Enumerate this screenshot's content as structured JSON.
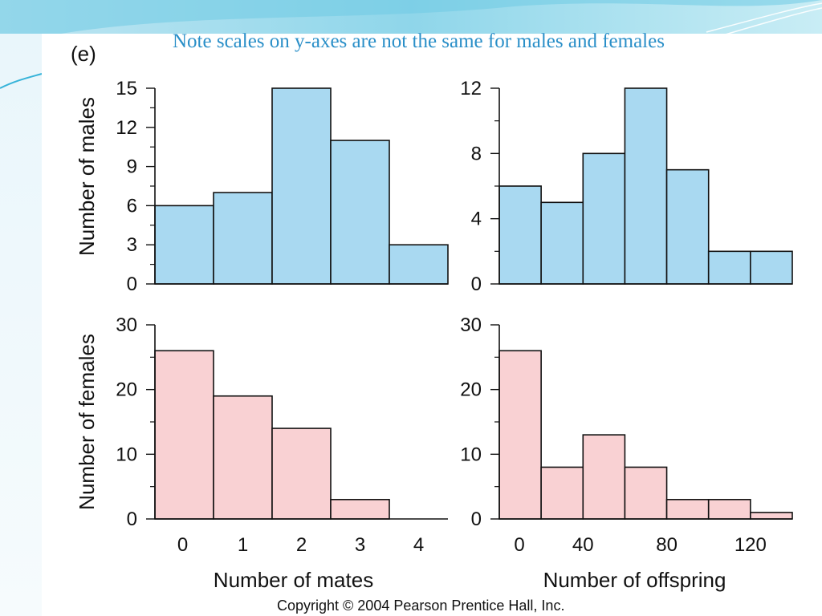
{
  "slide": {
    "title": "Note scales on y-axes are not the same for males and females",
    "panel_label": "(e)",
    "copyright": "Copyright © 2004 Pearson Prentice Hall, Inc.",
    "colors": {
      "male": "#a9d9f1",
      "female": "#f9d1d3",
      "title": "#2a8fc8",
      "accent": "#36b3d9"
    }
  },
  "chart_data": [
    {
      "id": "males-mates",
      "type": "bar",
      "title": "",
      "xlabel": "",
      "ylabel": "Number of males",
      "categories": [
        "0",
        "1",
        "2",
        "3",
        "4"
      ],
      "values": [
        6,
        7,
        15,
        11,
        3
      ],
      "ylim": [
        0,
        15
      ],
      "yticks": [
        0,
        3,
        6,
        9,
        12,
        15
      ],
      "ytick_labels": [
        "0",
        "3",
        "6",
        "9",
        "12",
        "15"
      ],
      "minor_yticks": [
        1.5,
        4.5,
        7.5,
        10.5,
        13.5
      ],
      "xticks": [],
      "xtick_labels": [],
      "color": "male"
    },
    {
      "id": "males-offspring",
      "type": "bar",
      "title": "",
      "xlabel": "",
      "ylabel": "",
      "categories": [
        "0-20",
        "20-40",
        "40-60",
        "60-80",
        "80-100",
        "100-120",
        "120-140"
      ],
      "values": [
        6,
        5,
        8,
        12,
        7,
        2,
        2
      ],
      "ylim": [
        0,
        12
      ],
      "yticks": [
        0,
        4,
        8,
        12
      ],
      "ytick_labels": [
        "0",
        "4",
        "8",
        "12"
      ],
      "minor_yticks": [
        2,
        6,
        10
      ],
      "xticks": [],
      "xtick_labels": [],
      "color": "male"
    },
    {
      "id": "females-mates",
      "type": "bar",
      "title": "",
      "xlabel": "Number of mates",
      "ylabel": "Number of females",
      "categories": [
        "0",
        "1",
        "2",
        "3",
        "4"
      ],
      "values": [
        26,
        19,
        14,
        3,
        0
      ],
      "ylim": [
        0,
        30
      ],
      "yticks": [
        0,
        10,
        20,
        30
      ],
      "ytick_labels": [
        "0",
        "10",
        "20",
        "30"
      ],
      "minor_yticks": [
        5,
        15,
        25
      ],
      "xticks": [
        0,
        1,
        2,
        3,
        4
      ],
      "xtick_labels": [
        "0",
        "1",
        "2",
        "3",
        "4"
      ],
      "color": "female"
    },
    {
      "id": "females-offspring",
      "type": "bar",
      "title": "",
      "xlabel": "Number of offspring",
      "ylabel": "",
      "categories": [
        "0-20",
        "20-40",
        "40-60",
        "60-80",
        "80-100",
        "100-120",
        "120-140"
      ],
      "values": [
        26,
        8,
        13,
        8,
        3,
        3,
        1
      ],
      "ylim": [
        0,
        30
      ],
      "yticks": [
        0,
        10,
        20,
        30
      ],
      "ytick_labels": [
        "0",
        "10",
        "20",
        "30"
      ],
      "minor_yticks": [
        5,
        15,
        25
      ],
      "xticks": [
        0,
        2,
        4,
        6
      ],
      "xtick_labels": [
        "0",
        "40",
        "80",
        "120"
      ],
      "color": "female"
    }
  ]
}
